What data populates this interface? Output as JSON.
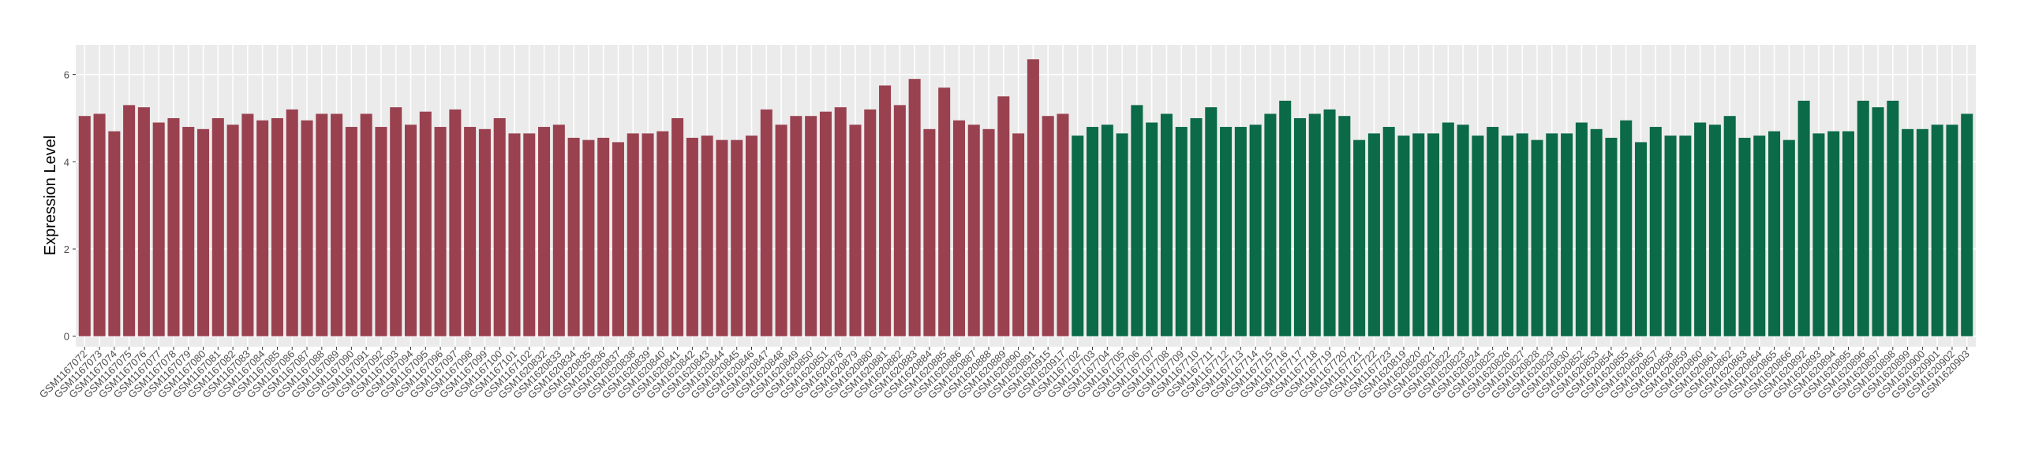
{
  "chart_data": {
    "type": "bar",
    "y_label": "Expression Level",
    "categories": [
      "GSM1167072",
      "GSM1167073",
      "GSM1167074",
      "GSM1167075",
      "GSM1167076",
      "GSM1167077",
      "GSM1167078",
      "GSM1167079",
      "GSM1167080",
      "GSM1167081",
      "GSM1167082",
      "GSM1167083",
      "GSM1167084",
      "GSM1167085",
      "GSM1167086",
      "GSM1167087",
      "GSM1167088",
      "GSM1167089",
      "GSM1167090",
      "GSM1167091",
      "GSM1167092",
      "GSM1167093",
      "GSM1167094",
      "GSM1167095",
      "GSM1167096",
      "GSM1167097",
      "GSM1167098",
      "GSM1167099",
      "GSM1167100",
      "GSM1167101",
      "GSM1167102",
      "GSM1620832",
      "GSM1620833",
      "GSM1620834",
      "GSM1620835",
      "GSM1620836",
      "GSM1620837",
      "GSM1620838",
      "GSM1620839",
      "GSM1620840",
      "GSM1620841",
      "GSM1620842",
      "GSM1620843",
      "GSM1620844",
      "GSM1620845",
      "GSM1620846",
      "GSM1620847",
      "GSM1620848",
      "GSM1620849",
      "GSM1620850",
      "GSM1620851",
      "GSM1620878",
      "GSM1620879",
      "GSM1620880",
      "GSM1620881",
      "GSM1620882",
      "GSM1620883",
      "GSM1620884",
      "GSM1620885",
      "GSM1620886",
      "GSM1620887",
      "GSM1620888",
      "GSM1620889",
      "GSM1620890",
      "GSM1620891",
      "GSM1620915",
      "GSM1620917",
      "GSM1167702",
      "GSM1167703",
      "GSM1167704",
      "GSM1167705",
      "GSM1167706",
      "GSM1167707",
      "GSM1167708",
      "GSM1167709",
      "GSM1167710",
      "GSM1167711",
      "GSM1167712",
      "GSM1167713",
      "GSM1167714",
      "GSM1167715",
      "GSM1167716",
      "GSM1167717",
      "GSM1167718",
      "GSM1167719",
      "GSM1167720",
      "GSM1167721",
      "GSM1167722",
      "GSM1167723",
      "GSM1620819",
      "GSM1620820",
      "GSM1620821",
      "GSM1620822",
      "GSM1620823",
      "GSM1620824",
      "GSM1620825",
      "GSM1620826",
      "GSM1620827",
      "GSM1620828",
      "GSM1620829",
      "GSM1620830",
      "GSM1620852",
      "GSM1620853",
      "GSM1620854",
      "GSM1620855",
      "GSM1620856",
      "GSM1620857",
      "GSM1620858",
      "GSM1620859",
      "GSM1620860",
      "GSM1620861",
      "GSM1620862",
      "GSM1620863",
      "GSM1620864",
      "GSM1620865",
      "GSM1620866",
      "GSM1620892",
      "GSM1620893",
      "GSM1620894",
      "GSM1620895",
      "GSM1620896",
      "GSM1620897",
      "GSM1620898",
      "GSM1620899",
      "GSM1620900",
      "GSM1620901",
      "GSM1620902",
      "GSM1620903"
    ],
    "series": [
      {
        "color": "#9a4150",
        "values": [
          5.05,
          5.1,
          4.7,
          5.3,
          5.25,
          4.9,
          5.0,
          4.8,
          4.75,
          5.0,
          4.85,
          5.1,
          4.95,
          5.0,
          5.2,
          4.95,
          5.1,
          5.1,
          4.8,
          5.1,
          4.8,
          5.25,
          4.85,
          5.15,
          4.8,
          5.2,
          4.8,
          4.75,
          5.0,
          4.65,
          4.65,
          4.8,
          4.85,
          4.55,
          4.5,
          4.55,
          4.45,
          4.65,
          4.65,
          4.7,
          5.0,
          4.55,
          4.6,
          4.5,
          4.5,
          4.6,
          5.2,
          4.85,
          5.05,
          5.05,
          5.15,
          5.25,
          4.85,
          5.2,
          5.75,
          5.3,
          5.9,
          4.75,
          5.7,
          4.95,
          4.85,
          4.75,
          5.5,
          4.65,
          6.35,
          5.05,
          5.1,
          null,
          null,
          null,
          null,
          null,
          null,
          null,
          null,
          null,
          null,
          null,
          null,
          null,
          null,
          null,
          null,
          null,
          null,
          null,
          null,
          null,
          null,
          null,
          null,
          null,
          null,
          null,
          null,
          null,
          null,
          null,
          null,
          null,
          null,
          null,
          null,
          null,
          null,
          null,
          null,
          null,
          null,
          null,
          null,
          null,
          null,
          null,
          null,
          null,
          null,
          null,
          null,
          null,
          null,
          null,
          null,
          null,
          null,
          null,
          null,
          null
        ]
      },
      {
        "color": "#0b6a47",
        "values": [
          null,
          null,
          null,
          null,
          null,
          null,
          null,
          null,
          null,
          null,
          null,
          null,
          null,
          null,
          null,
          null,
          null,
          null,
          null,
          null,
          null,
          null,
          null,
          null,
          null,
          null,
          null,
          null,
          null,
          null,
          null,
          null,
          null,
          null,
          null,
          null,
          null,
          null,
          null,
          null,
          null,
          null,
          null,
          null,
          null,
          null,
          null,
          null,
          null,
          null,
          null,
          null,
          null,
          null,
          null,
          null,
          null,
          null,
          null,
          null,
          null,
          null,
          null,
          null,
          null,
          null,
          null,
          4.6,
          4.8,
          4.85,
          4.65,
          5.3,
          4.9,
          5.1,
          4.8,
          5.0,
          5.25,
          4.8,
          4.8,
          4.85,
          5.1,
          5.4,
          5.0,
          5.1,
          5.2,
          5.05,
          4.5,
          4.65,
          4.8,
          4.6,
          4.65,
          4.65,
          4.9,
          4.85,
          4.6,
          4.8,
          4.6,
          4.65,
          4.5,
          4.65,
          4.65,
          4.9,
          4.75,
          4.55,
          4.95,
          4.45,
          4.8,
          4.6,
          4.6,
          4.9,
          4.85,
          5.05,
          4.55,
          4.6,
          4.7,
          4.5,
          5.4,
          4.65,
          4.7,
          4.7,
          5.4,
          5.25,
          5.4,
          4.75,
          4.75,
          4.85,
          4.85,
          5.1
        ]
      }
    ],
    "ylim": [
      -0.24,
      6.68
    ],
    "yticks": [
      0,
      2,
      4,
      6
    ],
    "grid": true
  }
}
